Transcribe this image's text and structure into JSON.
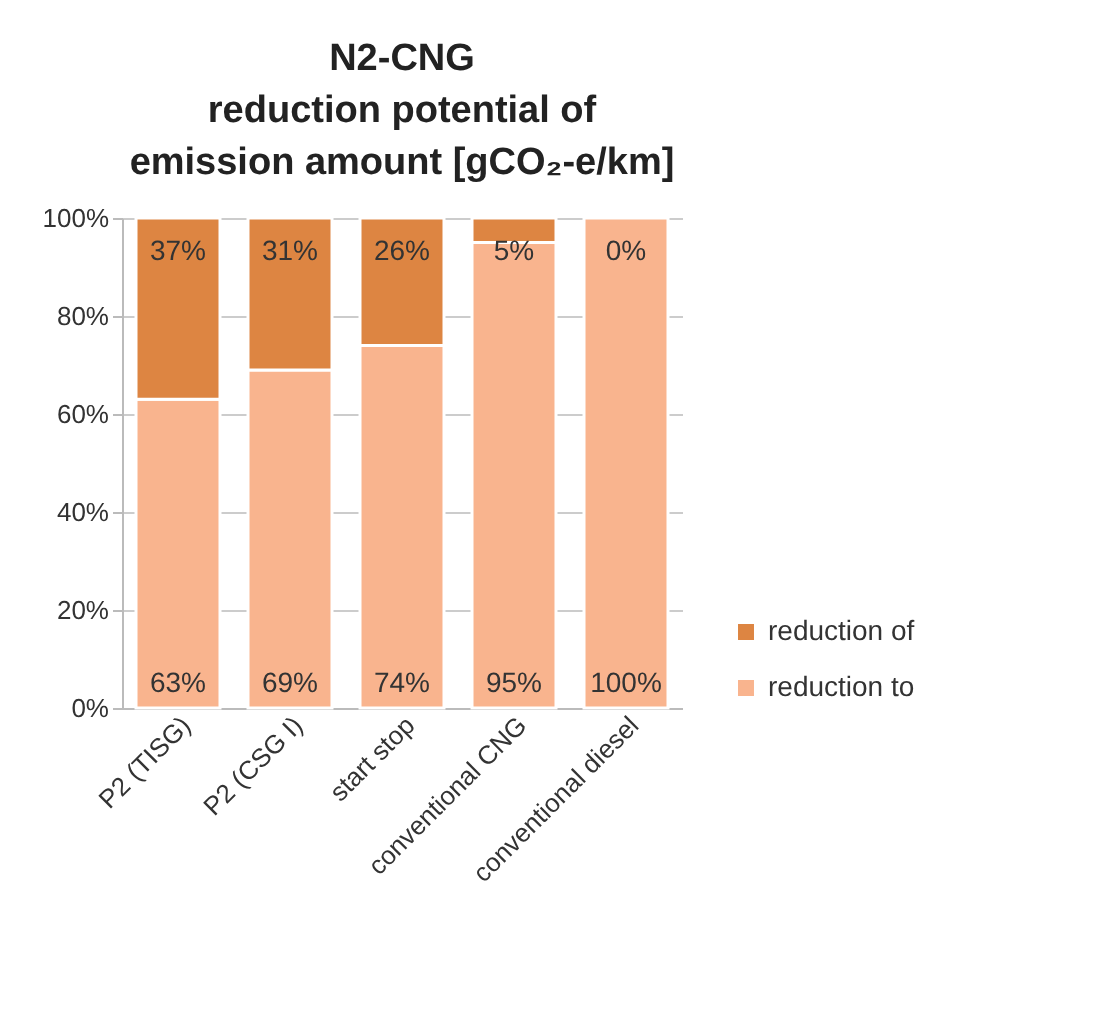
{
  "chart_data": {
    "type": "bar",
    "title": "N2-CNG\nreduction potential of\nemission amount  [gCO₂-e/km]",
    "categories": [
      "P2 (TISG)",
      "P2 (CSG I)",
      "start stop",
      "conventional CNG",
      "conventional diesel"
    ],
    "stacked": true,
    "series": [
      {
        "name": "reduction to",
        "color": "#f9b48e",
        "values": [
          63,
          69,
          74,
          95,
          100
        ],
        "value_labels": [
          "63%",
          "69%",
          "74%",
          "95%",
          "100%"
        ]
      },
      {
        "name": "reduction of",
        "color": "#dd8542",
        "values": [
          37,
          31,
          26,
          5,
          0
        ],
        "value_labels": [
          "37%",
          "31%",
          "26%",
          "5%",
          "0%"
        ]
      }
    ],
    "ylim": [
      0,
      100
    ],
    "yticks": [
      {
        "value": 0,
        "label": "0%"
      },
      {
        "value": 20,
        "label": "20%"
      },
      {
        "value": 40,
        "label": "40%"
      },
      {
        "value": 60,
        "label": "60%"
      },
      {
        "value": 80,
        "label": "80%"
      },
      {
        "value": 100,
        "label": "100%"
      }
    ],
    "grid": "y",
    "legend": "right"
  }
}
